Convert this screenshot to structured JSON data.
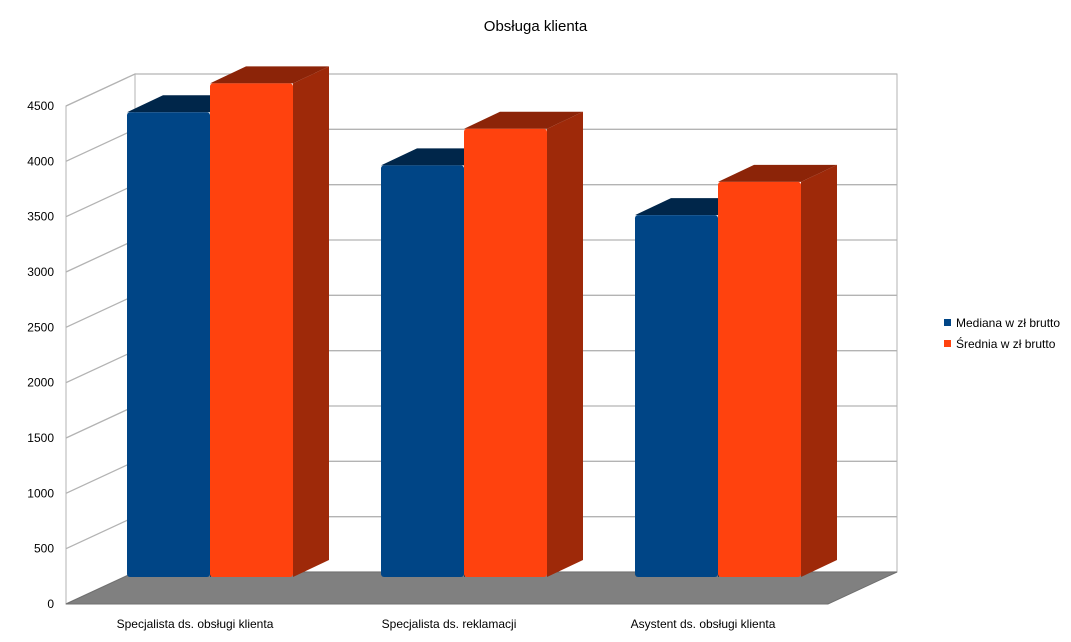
{
  "chart_data": {
    "type": "bar",
    "title": "Obsługa klienta",
    "categories": [
      "Specjalista ds. obsługi klienta",
      "Specjalista ds. reklamacji",
      "Asystent ds. obsługi klienta"
    ],
    "series": [
      {
        "name": "Mediana w zł brutto",
        "values": [
          4200,
          3720,
          3270
        ],
        "color": "#004586"
      },
      {
        "name": "Średnia w zł brutto",
        "values": [
          4460,
          4050,
          3570
        ],
        "color": "#ff420e"
      }
    ],
    "ylim": [
      0,
      4500
    ],
    "yticks": [
      0,
      500,
      1000,
      1500,
      2000,
      2500,
      3000,
      3500,
      4000,
      4500
    ],
    "grid": true,
    "legend_position": "right",
    "style": "3d"
  }
}
